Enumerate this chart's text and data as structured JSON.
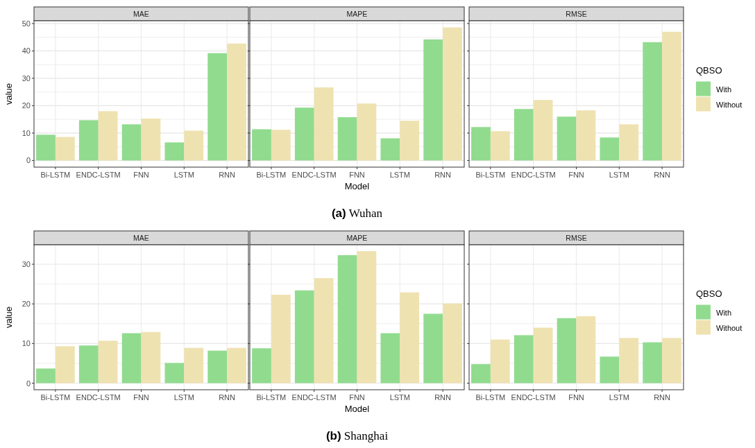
{
  "chart_data": [
    {
      "type": "bar",
      "title": "MAE",
      "ylabel": "value",
      "categories": [
        "Bi-LSTM",
        "ENDC-LSTM",
        "FNN",
        "LSTM",
        "RNN"
      ],
      "series": [
        {
          "color": "#91db8f",
          "values": [
            9.4,
            14.7,
            13.2,
            6.6,
            39.2
          ]
        },
        {
          "color": "#efe2b1",
          "values": [
            8.6,
            18.0,
            15.3,
            10.9,
            42.7
          ]
        }
      ],
      "ylim": [
        -2.43,
        51.0
      ],
      "yticks": [
        0,
        {
          "value": 5,
          "label": null
        },
        10,
        {
          "value": 15,
          "label": null
        },
        20,
        {
          "value": 25,
          "label": null
        },
        30,
        {
          "value": 35,
          "label": null
        },
        40,
        {
          "value": 45,
          "label": null
        },
        50
      ],
      "grid": true,
      "legend": false
    },
    {
      "type": "bar",
      "title": "MAPE",
      "xlabel": "Model",
      "annotations": [
        "(a) Wuhan"
      ],
      "categories": [
        "Bi-LSTM",
        "ENDC-LSTM",
        "FNN",
        "LSTM",
        "RNN"
      ],
      "series": [
        {
          "color": "#91db8f",
          "values": [
            11.4,
            19.3,
            15.8,
            8.1,
            44.2
          ]
        },
        {
          "color": "#efe2b1",
          "values": [
            11.2,
            26.7,
            20.8,
            14.5,
            48.6
          ]
        }
      ],
      "ylim": [
        -2.43,
        51.0
      ],
      "yticks": [
        0,
        {
          "value": 5,
          "label": null
        },
        10,
        {
          "value": 15,
          "label": null
        },
        20,
        {
          "value": 25,
          "label": null
        },
        30,
        {
          "value": 35,
          "label": null
        },
        40,
        {
          "value": 45,
          "label": null
        },
        50
      ],
      "tick_labels": "x",
      "grid": true,
      "legend": false
    },
    {
      "type": "bar",
      "title": "RMSE",
      "legend_title": "QBSO",
      "categories": [
        "Bi-LSTM",
        "ENDC-LSTM",
        "FNN",
        "LSTM",
        "RNN"
      ],
      "series": [
        {
          "name": "With",
          "color": "#91db8f",
          "values": [
            12.2,
            18.8,
            16.0,
            8.4,
            43.2
          ]
        },
        {
          "name": "Without",
          "color": "#efe2b1",
          "values": [
            10.7,
            22.1,
            18.3,
            13.2,
            47.0
          ]
        }
      ],
      "ylim": [
        -2.43,
        51.0
      ],
      "yticks": [
        0,
        {
          "value": 5,
          "label": null
        },
        10,
        {
          "value": 15,
          "label": null
        },
        20,
        {
          "value": 25,
          "label": null
        },
        30,
        {
          "value": 35,
          "label": null
        },
        40,
        {
          "value": 45,
          "label": null
        },
        50
      ],
      "tick_labels": "x",
      "grid": true,
      "legend": "right"
    },
    {
      "type": "bar",
      "title": "MAE",
      "ylabel": "value",
      "categories": [
        "Bi-LSTM",
        "ENDC-LSTM",
        "FNN",
        "LSTM",
        "RNN"
      ],
      "series": [
        {
          "color": "#91db8f",
          "values": [
            3.7,
            9.5,
            12.6,
            5.1,
            8.2
          ]
        },
        {
          "color": "#efe2b1",
          "values": [
            9.3,
            10.7,
            12.9,
            8.9,
            8.9
          ]
        }
      ],
      "ylim": [
        -1.66,
        34.9
      ],
      "yticks": [
        0,
        {
          "value": 5,
          "label": null
        },
        10,
        {
          "value": 15,
          "label": null
        },
        20,
        {
          "value": 25,
          "label": null
        },
        30
      ],
      "grid": true,
      "legend": false
    },
    {
      "type": "bar",
      "title": "MAPE",
      "xlabel": "Model",
      "annotations": [
        "(b) Shanghai"
      ],
      "categories": [
        "Bi-LSTM",
        "ENDC-LSTM",
        "FNN",
        "LSTM",
        "RNN"
      ],
      "series": [
        {
          "color": "#91db8f",
          "values": [
            8.8,
            23.4,
            32.3,
            12.6,
            17.5
          ]
        },
        {
          "color": "#efe2b1",
          "values": [
            22.3,
            26.5,
            33.3,
            22.9,
            20.1
          ]
        }
      ],
      "ylim": [
        -1.66,
        34.9
      ],
      "yticks": [
        0,
        {
          "value": 5,
          "label": null
        },
        10,
        {
          "value": 15,
          "label": null
        },
        20,
        {
          "value": 25,
          "label": null
        },
        30
      ],
      "tick_labels": "x",
      "grid": true,
      "legend": false
    },
    {
      "type": "bar",
      "title": "RMSE",
      "legend_title": "QBSO",
      "categories": [
        "Bi-LSTM",
        "ENDC-LSTM",
        "FNN",
        "LSTM",
        "RNN"
      ],
      "series": [
        {
          "name": "With",
          "color": "#91db8f",
          "values": [
            4.8,
            12.1,
            16.4,
            6.7,
            10.3
          ]
        },
        {
          "name": "Without",
          "color": "#efe2b1",
          "values": [
            11.0,
            14.0,
            16.9,
            11.4,
            11.4
          ]
        }
      ],
      "ylim": [
        -1.66,
        34.9
      ],
      "yticks": [
        0,
        {
          "value": 5,
          "label": null
        },
        10,
        {
          "value": 15,
          "label": null
        },
        20,
        {
          "value": 25,
          "label": null
        },
        30
      ],
      "tick_labels": "x",
      "grid": true,
      "legend": "right"
    }
  ]
}
